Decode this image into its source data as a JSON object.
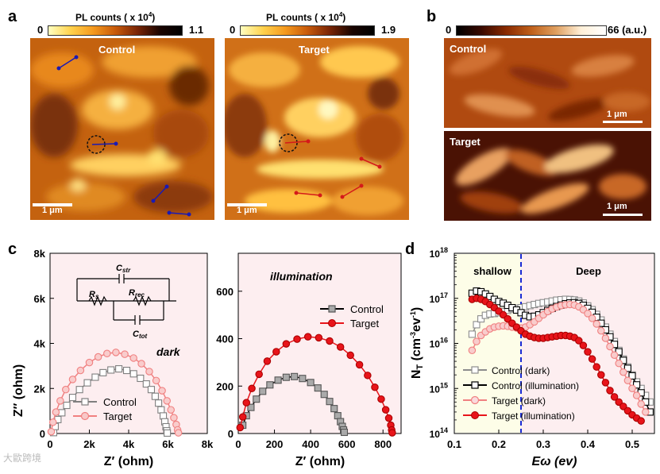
{
  "panel_letters": {
    "a": "a",
    "b": "b",
    "c": "c",
    "d": "d"
  },
  "panel_a": {
    "colorbar_title": "PL counts ( x 10",
    "colorbar_exp": "4",
    "colorbar_close": ")",
    "left": {
      "min": "0",
      "max": "1.1",
      "title": "Control",
      "scale": "1 μm"
    },
    "right": {
      "min": "0",
      "max": "1.9",
      "title": "Target",
      "scale": "1 μm"
    }
  },
  "panel_b": {
    "min": "0",
    "max": "66",
    "unit": "(a.u.)",
    "top_title": "Control",
    "bottom_title": "Target",
    "scale": "1 μm"
  },
  "chart_data": [
    {
      "type": "scatter",
      "title": "dark",
      "xlabel": "Z′ (ohm)",
      "ylabel": "Z″ (ohm)",
      "xlim": [
        0,
        8000
      ],
      "ylim": [
        0,
        8000
      ],
      "xticks": [
        "0",
        "2k",
        "4k",
        "6k",
        "8k"
      ],
      "yticks": [
        "0",
        "2k",
        "4k",
        "6k",
        "8k"
      ],
      "circuit_labels": [
        "C",
        "str",
        "R",
        "s",
        "R",
        "rec",
        "C",
        "tot"
      ],
      "series": [
        {
          "name": "Control",
          "color": "#7f7f7f",
          "marker": "square",
          "x": [
            180,
            260,
            400,
            600,
            850,
            1150,
            1500,
            1900,
            2300,
            2700,
            3100,
            3500,
            3900,
            4250,
            4600,
            4900,
            5150,
            5350,
            5520,
            5650,
            5760,
            5840,
            5900,
            5940,
            5965
          ],
          "y": [
            40,
            310,
            620,
            920,
            1250,
            1600,
            1950,
            2250,
            2500,
            2700,
            2820,
            2870,
            2800,
            2650,
            2450,
            2200,
            1950,
            1650,
            1350,
            1050,
            780,
            520,
            300,
            120,
            20
          ]
        },
        {
          "name": "Target",
          "color": "#f08080",
          "marker": "circle",
          "x": [
            60,
            150,
            300,
            520,
            800,
            1150,
            1550,
            2000,
            2450,
            2900,
            3350,
            3800,
            4250,
            4650,
            5050,
            5400,
            5700,
            5950,
            6150,
            6300,
            6420,
            6490,
            6530
          ],
          "y": [
            80,
            500,
            950,
            1450,
            1950,
            2400,
            2800,
            3150,
            3400,
            3550,
            3600,
            3520,
            3350,
            3100,
            2750,
            2350,
            1900,
            1450,
            1050,
            700,
            400,
            160,
            30
          ]
        }
      ]
    },
    {
      "type": "scatter",
      "title": "illumination",
      "xlabel": "Z′ (ohm)",
      "xlim": [
        0,
        900
      ],
      "ylim": [
        0,
        760
      ],
      "xticks": [
        "0",
        "200",
        "400",
        "600",
        "800"
      ],
      "yticks": [
        "0",
        "200",
        "400",
        "600"
      ],
      "series": [
        {
          "name": "Control",
          "color": "#7f7f7f",
          "marker": "square",
          "x": [
            25,
            45,
            70,
            100,
            135,
            175,
            220,
            265,
            310,
            355,
            400,
            440,
            475,
            505,
            530,
            550,
            565,
            575,
            582,
            586
          ],
          "y": [
            35,
            75,
            110,
            145,
            178,
            205,
            225,
            237,
            240,
            232,
            215,
            192,
            165,
            135,
            105,
            75,
            50,
            30,
            15,
            5
          ]
        },
        {
          "name": "Target",
          "color": "#e8141a",
          "marker": "circle",
          "x": [
            10,
            25,
            45,
            75,
            115,
            160,
            210,
            265,
            325,
            385,
            445,
            505,
            565,
            620,
            670,
            715,
            755,
            790,
            815,
            832,
            843,
            848,
            851
          ],
          "y": [
            25,
            70,
            130,
            190,
            250,
            305,
            345,
            378,
            398,
            408,
            404,
            390,
            365,
            330,
            290,
            245,
            195,
            145,
            100,
            65,
            35,
            15,
            3
          ]
        }
      ]
    },
    {
      "type": "scatter",
      "title": "",
      "xlabel": "Eω (ev)",
      "ylabel": "N_T (cm^-3 ev^-1)",
      "xlim": [
        0.1,
        0.55
      ],
      "ylim": [
        100000000000000.0,
        1e+18
      ],
      "yscale": "log",
      "xticks": [
        "0.1",
        "0.2",
        "0.3",
        "0.4",
        "0.5"
      ],
      "yticks": [
        "10^14",
        "10^15",
        "10^16",
        "10^17",
        "10^18"
      ],
      "region_labels": {
        "left": "shallow",
        "right": "Deep",
        "divider": 0.25
      },
      "series": [
        {
          "name": "Control (dark)",
          "color": "#8c8c8c",
          "marker": "square-open",
          "x": [
            0.14,
            0.15,
            0.16,
            0.17,
            0.18,
            0.19,
            0.2,
            0.21,
            0.22,
            0.23,
            0.24,
            0.25,
            0.26,
            0.27,
            0.28,
            0.29,
            0.3,
            0.31,
            0.32,
            0.33,
            0.34,
            0.35,
            0.36,
            0.37,
            0.38,
            0.39,
            0.4,
            0.41,
            0.42,
            0.43,
            0.44,
            0.45,
            0.46,
            0.47,
            0.48,
            0.49,
            0.5,
            0.51,
            0.52,
            0.53,
            0.54
          ],
          "y": [
            1.6e+16,
            2.6e+16,
            3.5e+16,
            4.2e+16,
            4.5e+16,
            4.6e+16,
            4.8e+16,
            5.1e+16,
            5.4e+16,
            5.8e+16,
            6e+16,
            6.2e+16,
            6.5e+16,
            6.9e+16,
            7.3e+16,
            7.7e+16,
            8e+16,
            8.3e+16,
            8.7e+16,
            9.1e+16,
            9.3e+16,
            9.5e+16,
            9.4e+16,
            9.2e+16,
            8.7e+16,
            7.9e+16,
            6.8e+16,
            5.6e+16,
            4.4e+16,
            3.3e+16,
            2.3e+16,
            1.6e+16,
            1.1e+16,
            7000000000000000.0,
            4500000000000000.0,
            3000000000000000.0,
            2000000000000000.0,
            1400000000000000.0,
            1000000000000000.0,
            700000000000000.0,
            500000000000000.0
          ]
        },
        {
          "name": "Control (illumination)",
          "color": "#000000",
          "marker": "square",
          "x": [
            0.14,
            0.15,
            0.16,
            0.17,
            0.18,
            0.19,
            0.2,
            0.21,
            0.22,
            0.23,
            0.24,
            0.25,
            0.26,
            0.27,
            0.28,
            0.29,
            0.3,
            0.31,
            0.32,
            0.33,
            0.34,
            0.35,
            0.36,
            0.37,
            0.38,
            0.39,
            0.4,
            0.41,
            0.42,
            0.43,
            0.44,
            0.45,
            0.46,
            0.47,
            0.48,
            0.49,
            0.5,
            0.51,
            0.52,
            0.53,
            0.54
          ],
          "y": [
            1.3e+17,
            1.45e+17,
            1.4e+17,
            1.25e+17,
            1.1e+17,
            9.5e+16,
            8.5e+16,
            7.8e+16,
            7e+16,
            6.2e+16,
            5.5e+16,
            4.8e+16,
            4.2e+16,
            3.9e+16,
            4e+16,
            4.3e+16,
            4.8e+16,
            5.4e+16,
            6e+16,
            6.6e+16,
            7.1e+16,
            7.6e+16,
            7.9e+16,
            8e+16,
            7.7e+16,
            7e+16,
            6e+16,
            4.9e+16,
            3.8e+16,
            2.8e+16,
            2e+16,
            1.4e+16,
            9500000000000000.0,
            6500000000000000.0,
            4200000000000000.0,
            2800000000000000.0,
            1900000000000000.0,
            1200000000000000.0,
            800000000000000.0,
            500000000000000.0,
            300000000000000.0
          ]
        },
        {
          "name": "Target (dark)",
          "color": "#f08080",
          "marker": "circle-open",
          "x": [
            0.14,
            0.15,
            0.16,
            0.17,
            0.18,
            0.19,
            0.2,
            0.21,
            0.22,
            0.23,
            0.24,
            0.25,
            0.26,
            0.27,
            0.28,
            0.29,
            0.3,
            0.31,
            0.32,
            0.33,
            0.34,
            0.35,
            0.36,
            0.37,
            0.38,
            0.39,
            0.4,
            0.41,
            0.42,
            0.43,
            0.44,
            0.45,
            0.46,
            0.47,
            0.48,
            0.49,
            0.5,
            0.51,
            0.52,
            0.53
          ],
          "y": [
            7000000000000000.0,
            1.1e+16,
            1.5e+16,
            1.8e+16,
            2.1e+16,
            2.3e+16,
            2.4e+16,
            2.45e+16,
            2.4e+16,
            2.3e+16,
            2.2e+16,
            2.2e+16,
            2.3e+16,
            2.6e+16,
            3e+16,
            3.6e+16,
            4.3e+16,
            5.1e+16,
            5.8e+16,
            6.4e+16,
            6.9e+16,
            7.2e+16,
            7.3e+16,
            7.1e+16,
            6.5e+16,
            5.6e+16,
            4.6e+16,
            3.6e+16,
            2.7e+16,
            1.9e+16,
            1.3e+16,
            8500000000000000.0,
            5500000000000000.0,
            3600000000000000.0,
            2300000000000000.0,
            1500000000000000.0,
            1000000000000000.0,
            700000000000000.0,
            450000000000000.0,
            300000000000000.0
          ]
        },
        {
          "name": "Target (illumination)",
          "color": "#e8141a",
          "marker": "circle",
          "x": [
            0.14,
            0.15,
            0.16,
            0.17,
            0.18,
            0.19,
            0.2,
            0.21,
            0.22,
            0.23,
            0.24,
            0.25,
            0.26,
            0.27,
            0.28,
            0.29,
            0.3,
            0.31,
            0.32,
            0.33,
            0.34,
            0.35,
            0.36,
            0.37,
            0.38,
            0.39,
            0.4,
            0.41,
            0.42,
            0.43,
            0.44,
            0.45,
            0.46,
            0.47,
            0.48,
            0.49,
            0.5,
            0.51,
            0.52
          ],
          "y": [
            9.5e+16,
            1e+17,
            9.5e+16,
            8.5e+16,
            7.3e+16,
            6.2e+16,
            5.2e+16,
            4.3e+16,
            3.5e+16,
            2.8e+16,
            2.3e+16,
            1.9e+16,
            1.6e+16,
            1.45e+16,
            1.35e+16,
            1.3e+16,
            1.3e+16,
            1.35e+16,
            1.4e+16,
            1.45e+16,
            1.5e+16,
            1.5e+16,
            1.45e+16,
            1.35e+16,
            1.15e+16,
            9000000000000000.0,
            6500000000000000.0,
            4500000000000000.0,
            3000000000000000.0,
            2000000000000000.0,
            1350000000000000.0,
            900000000000000.0,
            650000000000000.0,
            500000000000000.0,
            400000000000000.0,
            320000000000000.0,
            260000000000000.0,
            220000000000000.0,
            190000000000000.0
          ]
        }
      ]
    }
  ],
  "watermark": "大歐跨境"
}
